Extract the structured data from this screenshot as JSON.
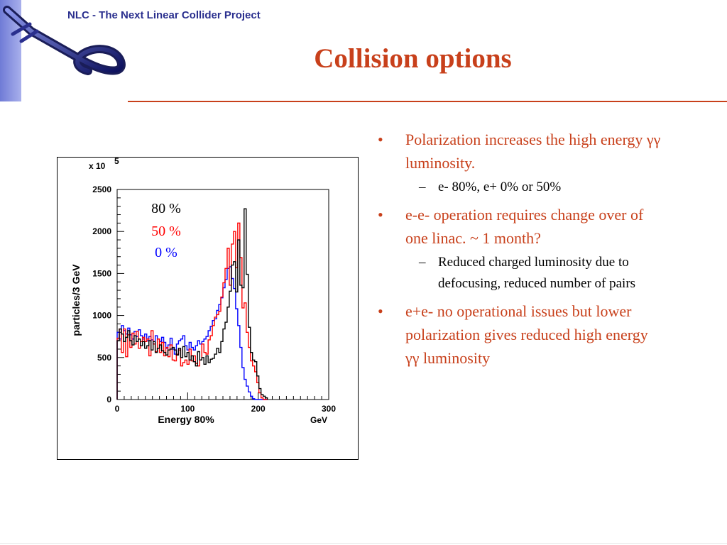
{
  "header": {
    "project_title": "NLC - The Next Linear Collider Project"
  },
  "slide": {
    "title": "Collision options"
  },
  "bullets": [
    {
      "text": "Polarization increases the high energy γγ luminosity.",
      "sub": [
        "e- 80%, e+ 0% or 50%"
      ]
    },
    {
      "text": "e-e- operation requires change over of one linac. ~ 1 month?",
      "sub": [
        "Reduced charged luminosity due to defocusing, reduced number of pairs"
      ]
    },
    {
      "text": "e+e- no operational issues but lower polarization gives reduced high energy γγ luminosity",
      "sub": []
    }
  ],
  "colors": {
    "title": "#c8401b",
    "header": "#2a2f8e",
    "series_80": "#000000",
    "series_50": "#ff0000",
    "series_0": "#0000ff"
  },
  "chart_data": {
    "type": "histogram-step",
    "xlabel": "Energy 80%",
    "xunit": "GeV",
    "ylabel": "particles/3 GeV",
    "y_scale_label": "x 10",
    "y_scale_exp": "5",
    "xlim": [
      0,
      300
    ],
    "ylim": [
      0,
      2500
    ],
    "x_ticks": [
      "0",
      "100",
      "200",
      "300"
    ],
    "y_ticks": [
      "0",
      "500",
      "1000",
      "1500",
      "2000",
      "2500"
    ],
    "bin_width": 3,
    "series": [
      {
        "name": "80 %",
        "color": "#000000",
        "values": [
          700,
          840,
          780,
          690,
          740,
          820,
          700,
          650,
          760,
          690,
          720,
          640,
          690,
          610,
          640,
          700,
          590,
          690,
          560,
          610,
          650,
          580,
          560,
          530,
          590,
          600,
          620,
          590,
          530,
          610,
          500,
          630,
          510,
          560,
          470,
          520,
          450,
          400,
          570,
          470,
          500,
          420,
          520,
          440,
          480,
          490,
          540,
          610,
          560,
          690,
          840,
          920,
          1100,
          1290,
          1600,
          1640,
          1280,
          1900,
          1360,
          1330,
          2270,
          1490,
          860,
          560,
          470,
          450,
          280,
          130,
          60,
          40,
          20
        ]
      },
      {
        "name": "50 %",
        "color": "#ff0000",
        "values": [
          730,
          840,
          560,
          840,
          510,
          770,
          620,
          790,
          660,
          810,
          610,
          690,
          740,
          690,
          720,
          520,
          820,
          660,
          570,
          720,
          560,
          680,
          520,
          620,
          510,
          650,
          470,
          460,
          540,
          590,
          400,
          440,
          470,
          420,
          600,
          460,
          520,
          430,
          400,
          470,
          660,
          560,
          540,
          710,
          760,
          880,
          980,
          1010,
          1050,
          1220,
          1390,
          1560,
          1800,
          1360,
          1850,
          2000,
          1570,
          2100,
          1690,
          1090,
          1150,
          800,
          620,
          460,
          400,
          330,
          200,
          80,
          20,
          0,
          0
        ]
      },
      {
        "name": "0 %",
        "color": "#0000ff",
        "values": [
          800,
          720,
          880,
          820,
          780,
          850,
          770,
          720,
          810,
          750,
          830,
          760,
          720,
          780,
          700,
          750,
          710,
          660,
          760,
          720,
          690,
          740,
          680,
          610,
          650,
          730,
          600,
          540,
          660,
          700,
          720,
          760,
          640,
          590,
          680,
          620,
          590,
          640,
          700,
          660,
          690,
          720,
          750,
          820,
          870,
          940,
          960,
          1060,
          1130,
          1210,
          1330,
          1430,
          1560,
          1580,
          1440,
          1320,
          1080,
          880,
          620,
          380,
          240,
          160,
          90,
          40,
          10,
          0,
          0,
          0,
          0,
          0,
          0
        ]
      }
    ]
  }
}
